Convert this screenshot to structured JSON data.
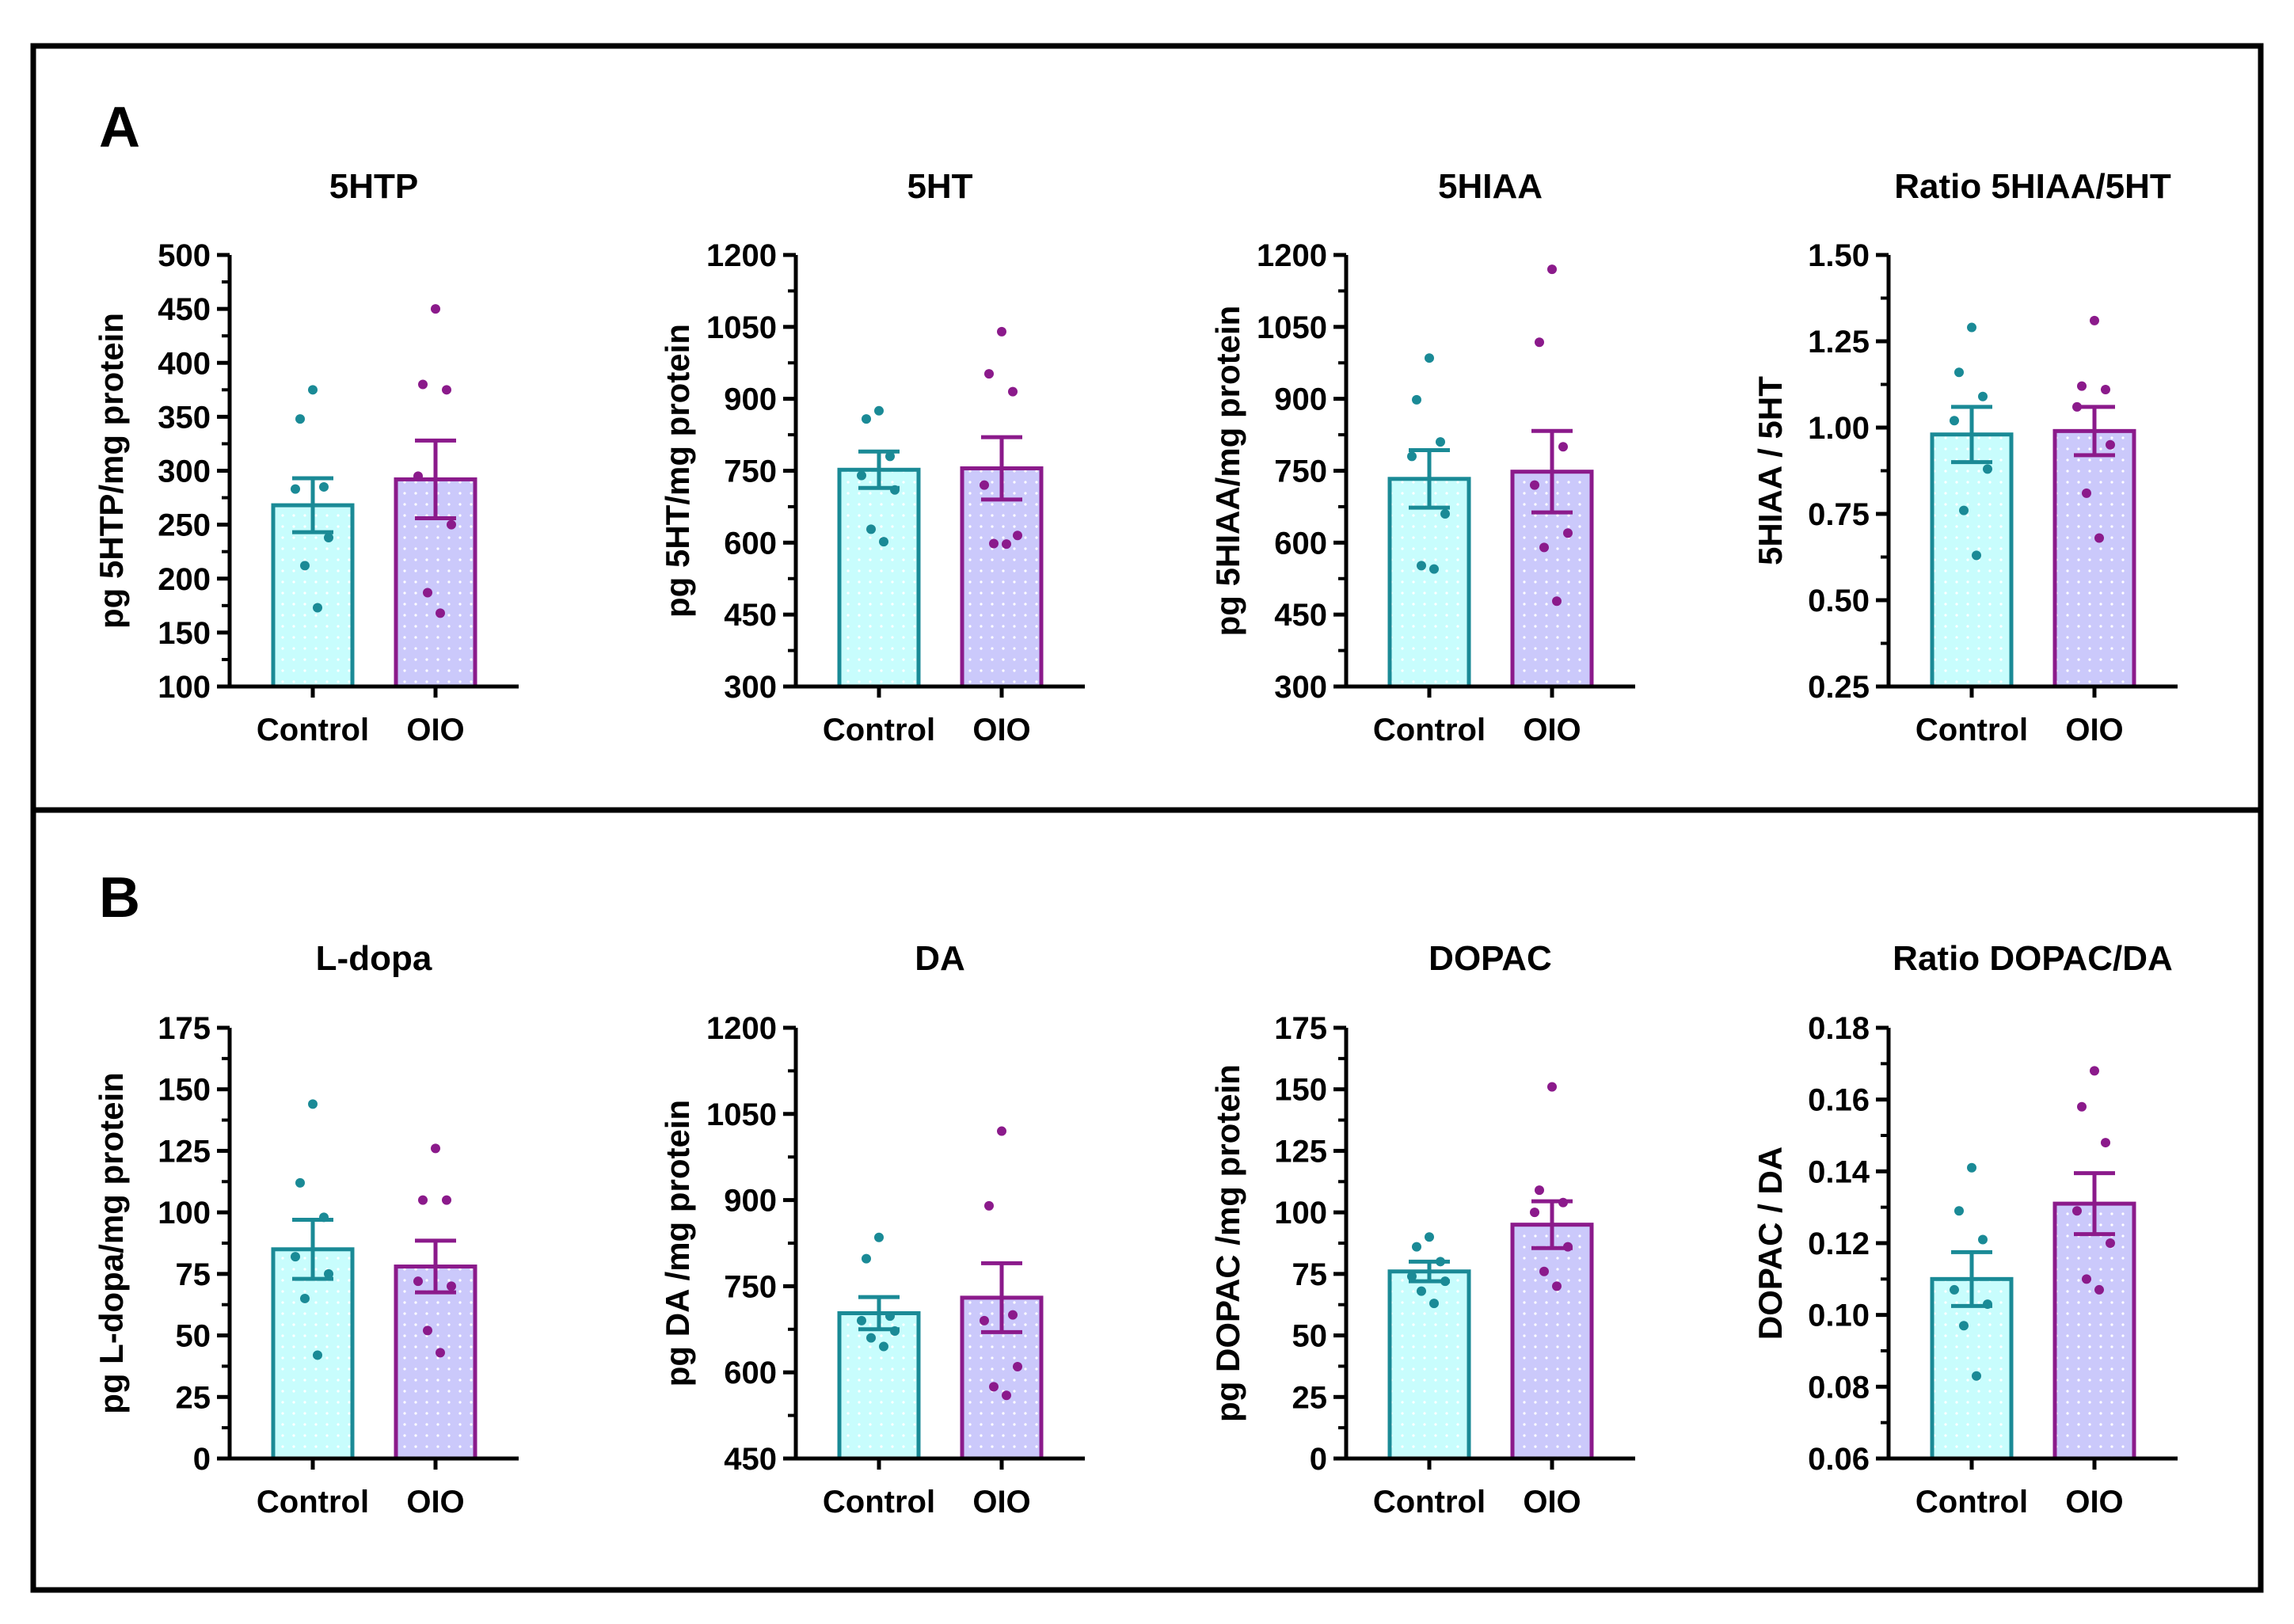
{
  "figure": {
    "panels": [
      {
        "letter": "A",
        "row": 0
      },
      {
        "letter": "B",
        "row": 1
      }
    ]
  },
  "chart_data": [
    {
      "type": "bar",
      "panel": "A",
      "title": "5HTP",
      "xlabel": "",
      "ylabel": "pg 5HTP/mg protein",
      "ylim": [
        100,
        500
      ],
      "yticks": [
        100,
        150,
        200,
        250,
        300,
        350,
        400,
        450,
        500
      ],
      "yticklabels": [
        "100",
        "150",
        "200",
        "250",
        "300",
        "350",
        "400",
        "450",
        "500"
      ],
      "categories": [
        "Control",
        "OIO"
      ],
      "values": [
        268,
        292
      ],
      "sem": [
        25,
        36
      ],
      "points": [
        [
          375,
          348,
          285,
          283,
          238,
          212,
          173
        ],
        [
          450,
          380,
          375,
          295,
          250,
          187,
          168
        ]
      ],
      "colors": {
        "Control": {
          "stroke": "#1a8a96",
          "fill": "#c8fdfd"
        },
        "OIO": {
          "stroke": "#8b1a8b",
          "fill": "#cbc9fb"
        }
      }
    },
    {
      "type": "bar",
      "panel": "A",
      "title": "5HT",
      "xlabel": "",
      "ylabel": "pg 5HT/mg protein",
      "ylim": [
        300,
        1200
      ],
      "yticks": [
        300,
        450,
        600,
        750,
        900,
        1050,
        1200
      ],
      "yticklabels": [
        "300",
        "450",
        "600",
        "750",
        "900",
        "1050",
        "1200"
      ],
      "categories": [
        "Control",
        "OIO"
      ],
      "values": [
        752,
        755
      ],
      "sem": [
        38,
        65
      ],
      "points": [
        [
          875,
          858,
          780,
          740,
          710,
          628,
          602
        ],
        [
          1040,
          952,
          915,
          720,
          615,
          598,
          597
        ]
      ],
      "colors": {
        "Control": {
          "stroke": "#1a8a96",
          "fill": "#c8fdfd"
        },
        "OIO": {
          "stroke": "#8b1a8b",
          "fill": "#cbc9fb"
        }
      }
    },
    {
      "type": "bar",
      "panel": "A",
      "title": "5HIAA",
      "xlabel": "",
      "ylabel": "pg 5HIAA/mg protein",
      "ylim": [
        300,
        1200
      ],
      "yticks": [
        300,
        450,
        600,
        750,
        900,
        1050,
        1200
      ],
      "yticklabels": [
        "300",
        "450",
        "600",
        "750",
        "900",
        "1050",
        "1200"
      ],
      "categories": [
        "Control",
        "OIO"
      ],
      "values": [
        733,
        748
      ],
      "sem": [
        60,
        85
      ],
      "points": [
        [
          985,
          898,
          810,
          780,
          660,
          552,
          545
        ],
        [
          1170,
          1018,
          800,
          720,
          620,
          590,
          478
        ]
      ],
      "colors": {
        "Control": {
          "stroke": "#1a8a96",
          "fill": "#c8fdfd"
        },
        "OIO": {
          "stroke": "#8b1a8b",
          "fill": "#cbc9fb"
        }
      }
    },
    {
      "type": "bar",
      "panel": "A",
      "title": "Ratio 5HIAA/5HT",
      "xlabel": "",
      "ylabel": "5HIAA / 5HT",
      "ylim": [
        0.25,
        1.5
      ],
      "yticks": [
        0.25,
        0.5,
        0.75,
        1.0,
        1.25,
        1.5
      ],
      "yticklabels": [
        "0.25",
        "0.50",
        "0.75",
        "1.00",
        "1.25",
        "1.50"
      ],
      "categories": [
        "Control",
        "OIO"
      ],
      "values": [
        0.98,
        0.99
      ],
      "sem": [
        0.08,
        0.07
      ],
      "points": [
        [
          1.29,
          1.16,
          1.09,
          1.02,
          0.88,
          0.76,
          0.63
        ],
        [
          1.31,
          1.12,
          1.11,
          1.06,
          0.95,
          0.81,
          0.68
        ]
      ],
      "colors": {
        "Control": {
          "stroke": "#1a8a96",
          "fill": "#c8fdfd"
        },
        "OIO": {
          "stroke": "#8b1a8b",
          "fill": "#cbc9fb"
        }
      }
    },
    {
      "type": "bar",
      "panel": "B",
      "title": "L-dopa",
      "xlabel": "",
      "ylabel": "pg L-dopa/mg protein",
      "ylim": [
        0,
        175
      ],
      "yticks": [
        0,
        25,
        50,
        75,
        100,
        125,
        150,
        175
      ],
      "yticklabels": [
        "0",
        "25",
        "50",
        "75",
        "100",
        "125",
        "150",
        "175"
      ],
      "categories": [
        "Control",
        "OIO"
      ],
      "values": [
        85,
        78
      ],
      "sem": [
        12,
        10.5
      ],
      "points": [
        [
          144,
          112,
          98,
          82,
          75,
          65,
          42
        ],
        [
          126,
          105,
          105,
          72,
          70,
          52,
          43
        ]
      ],
      "colors": {
        "Control": {
          "stroke": "#1a8a96",
          "fill": "#c8fdfd"
        },
        "OIO": {
          "stroke": "#8b1a8b",
          "fill": "#cbc9fb"
        }
      }
    },
    {
      "type": "bar",
      "panel": "B",
      "title": "DA",
      "xlabel": "",
      "ylabel": "pg DA /mg protein",
      "ylim": [
        450,
        1200
      ],
      "yticks": [
        450,
        600,
        750,
        900,
        1050,
        1200
      ],
      "yticklabels": [
        "450",
        "600",
        "750",
        "900",
        "1050",
        "1200"
      ],
      "categories": [
        "Control",
        "OIO"
      ],
      "values": [
        703,
        730
      ],
      "sem": [
        28,
        60
      ],
      "points": [
        [
          835,
          798,
          698,
          690,
          672,
          660,
          645
        ],
        [
          1020,
          890,
          700,
          690,
          610,
          575,
          560
        ]
      ],
      "colors": {
        "Control": {
          "stroke": "#1a8a96",
          "fill": "#c8fdfd"
        },
        "OIO": {
          "stroke": "#8b1a8b",
          "fill": "#cbc9fb"
        }
      }
    },
    {
      "type": "bar",
      "panel": "B",
      "title": "DOPAC",
      "xlabel": "",
      "ylabel": "pg DOPAC /mg protein",
      "ylim": [
        0,
        175
      ],
      "yticks": [
        0,
        25,
        50,
        75,
        100,
        125,
        150,
        175
      ],
      "yticklabels": [
        "0",
        "25",
        "50",
        "75",
        "100",
        "125",
        "150",
        "175"
      ],
      "categories": [
        "Control",
        "OIO"
      ],
      "values": [
        76,
        95
      ],
      "sem": [
        4,
        9.5
      ],
      "points": [
        [
          90,
          86,
          80,
          74,
          72,
          68,
          63
        ],
        [
          151,
          109,
          104,
          100,
          86,
          76,
          70
        ]
      ],
      "colors": {
        "Control": {
          "stroke": "#1a8a96",
          "fill": "#c8fdfd"
        },
        "OIO": {
          "stroke": "#8b1a8b",
          "fill": "#cbc9fb"
        }
      }
    },
    {
      "type": "bar",
      "panel": "B",
      "title": "Ratio DOPAC/DA",
      "xlabel": "",
      "ylabel": "DOPAC / DA",
      "ylim": [
        0.06,
        0.18
      ],
      "yticks": [
        0.06,
        0.08,
        0.1,
        0.12,
        0.14,
        0.16,
        0.18
      ],
      "yticklabels": [
        "0.06",
        "0.08",
        "0.10",
        "0.12",
        "0.14",
        "0.16",
        "0.18"
      ],
      "categories": [
        "Control",
        "OIO"
      ],
      "values": [
        0.11,
        0.131
      ],
      "sem": [
        0.0075,
        0.0085
      ],
      "points": [
        [
          0.141,
          0.129,
          0.121,
          0.107,
          0.103,
          0.097,
          0.083
        ],
        [
          0.168,
          0.158,
          0.148,
          0.129,
          0.12,
          0.11,
          0.107
        ]
      ],
      "colors": {
        "Control": {
          "stroke": "#1a8a96",
          "fill": "#c8fdfd"
        },
        "OIO": {
          "stroke": "#8b1a8b",
          "fill": "#cbc9fb"
        }
      }
    }
  ]
}
